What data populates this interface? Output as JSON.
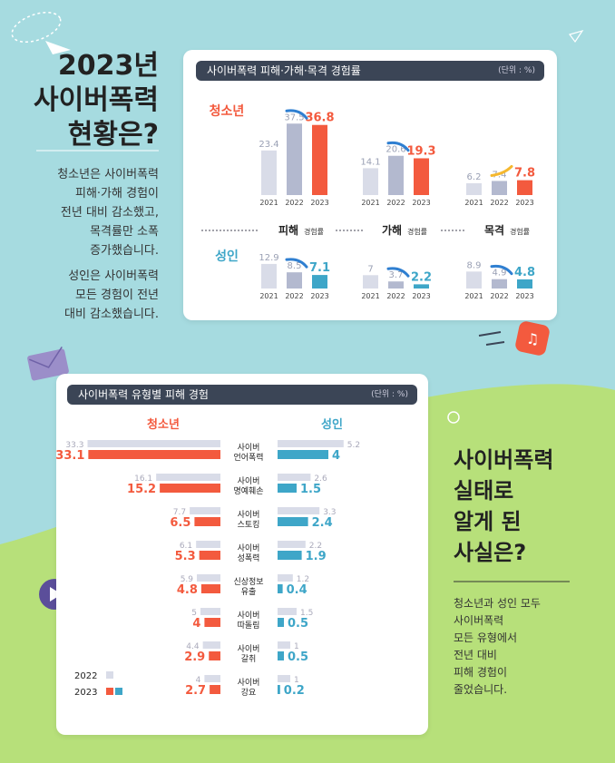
{
  "colors": {
    "bg_top": "#a6dbe0",
    "bg_bottom": "#b7e07a",
    "youth": "#f35a3e",
    "adult": "#3ea6c8",
    "prev": "#b3b9cf",
    "prev_light": "#d9dce8"
  },
  "left_intro": {
    "title_lines": [
      "2023년",
      "사이버폭력",
      "현황은?"
    ],
    "para1": [
      "청소년은 사이버폭력",
      "피해·가해 경험이",
      "전년 대비 감소했고,",
      "목격률만 소폭",
      "증가했습니다."
    ],
    "para2": [
      "성인은 사이버폭력",
      "모든 경험이 전년",
      "대비 감소했습니다."
    ]
  },
  "right_outro": {
    "title_lines": [
      "사이버폭력",
      "실태로",
      "알게 된",
      "사실은?"
    ],
    "para": [
      "청소년과 성인 모두",
      "사이버폭력",
      "모든 유형에서",
      "전년 대비",
      "피해 경험이",
      "줄었습니다."
    ]
  },
  "chart_data": [
    {
      "type": "bar",
      "title": "사이버폭력 피해·가해·목격 경험률",
      "unit": "(단위 : %)",
      "years": [
        "2021",
        "2022",
        "2023"
      ],
      "categories": [
        "피해",
        "가해",
        "목격"
      ],
      "category_suffix": "경험률",
      "series": [
        {
          "name": "청소년",
          "values": [
            [
              23.4,
              37.5,
              36.8
            ],
            [
              14.1,
              20.6,
              19.3
            ],
            [
              6.2,
              7.4,
              7.8
            ]
          ]
        },
        {
          "name": "성인",
          "values": [
            [
              12.9,
              8.5,
              7.1
            ],
            [
              7.0,
              3.7,
              2.2
            ],
            [
              8.9,
              4.9,
              4.8
            ]
          ]
        }
      ]
    },
    {
      "type": "bar",
      "title": "사이버폭력 유형별 피해 경험",
      "unit": "(단위 : %)",
      "groups": [
        "청소년",
        "성인"
      ],
      "categories": [
        [
          "사이버",
          "언어폭력"
        ],
        [
          "사이버",
          "명예훼손"
        ],
        [
          "사이버",
          "스토킹"
        ],
        [
          "사이버",
          "성폭력"
        ],
        [
          "신상정보",
          "유출"
        ],
        [
          "사이버",
          "따돌림"
        ],
        [
          "사이버",
          "갈취"
        ],
        [
          "사이버",
          "강요"
        ]
      ],
      "youth_2022": [
        33.3,
        16.1,
        7.7,
        6.1,
        5.9,
        5.0,
        4.4,
        4.0
      ],
      "youth_2023": [
        33.1,
        15.2,
        6.5,
        5.3,
        4.8,
        4.0,
        2.9,
        2.7
      ],
      "adult_2022": [
        5.2,
        2.6,
        3.3,
        2.2,
        1.2,
        1.5,
        1.0,
        1.0
      ],
      "adult_2023": [
        4.0,
        1.5,
        2.4,
        1.9,
        0.4,
        0.5,
        0.5,
        0.2
      ],
      "legend": [
        "2022",
        "2023"
      ]
    }
  ]
}
